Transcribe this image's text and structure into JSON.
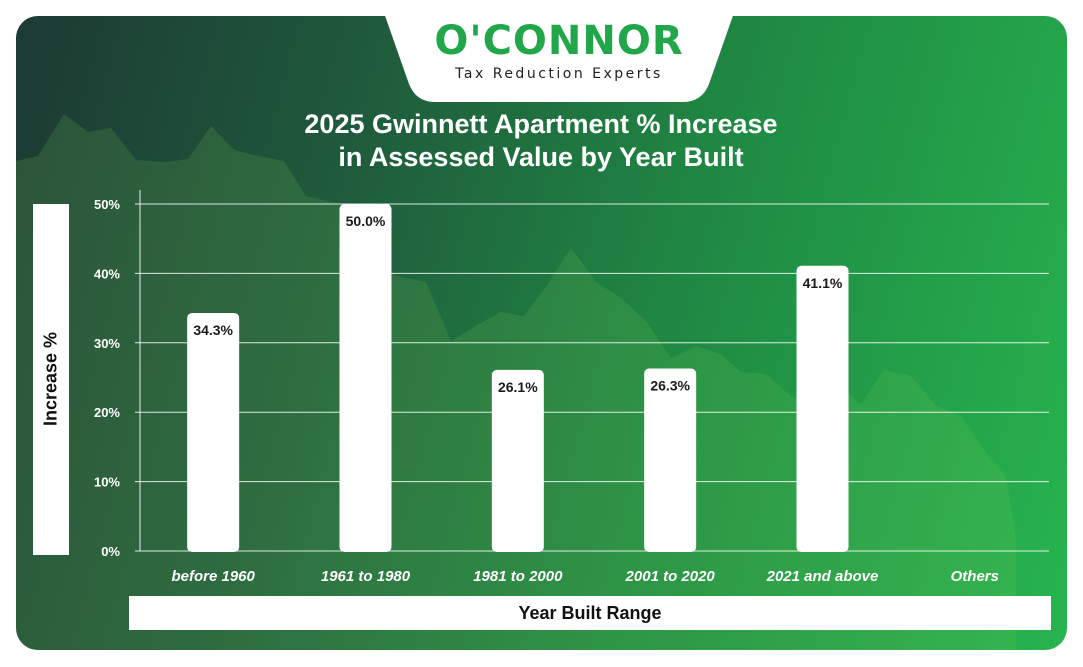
{
  "brand": {
    "name": "O'CONNOR",
    "tagline": "Tax Reduction Experts",
    "primary_color": "#22a64a"
  },
  "chart_data": {
    "type": "bar",
    "title_line1": "2025 Gwinnett Apartment % Increase",
    "title_line2": "in Assessed Value by Year Built",
    "xlabel": "Year Built Range",
    "ylabel": "Increase %",
    "categories": [
      "before 1960",
      "1961 to 1980",
      "1981 to 2000",
      "2001 to 2020",
      "2021 and above",
      "Others"
    ],
    "values": [
      34.3,
      50.0,
      26.1,
      26.3,
      41.1,
      null
    ],
    "value_labels": [
      "34.3%",
      "50.0%",
      "26.1%",
      "26.3%",
      "41.1%",
      ""
    ],
    "ylim": [
      0,
      50
    ],
    "yticks": [
      0,
      10,
      20,
      30,
      40,
      50
    ],
    "ytick_labels": [
      "0%",
      "10%",
      "20%",
      "30%",
      "40%",
      "50%"
    ],
    "grid": true,
    "bar_color": "#ffffff"
  }
}
